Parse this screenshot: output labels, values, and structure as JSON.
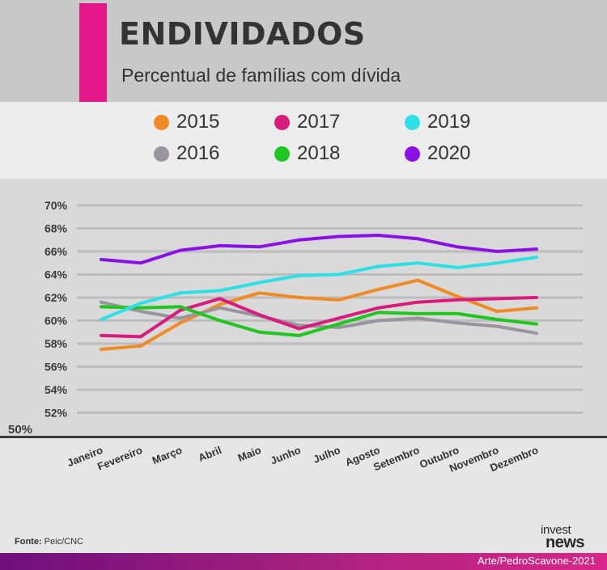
{
  "header": {
    "title": "ENDIVIDADOS",
    "subtitle": "Percentual de famílias com dívida"
  },
  "colors": {
    "accent": "#e5188b",
    "2015": "#f08a24",
    "2016": "#9a949e",
    "2017": "#d81b7c",
    "2018": "#20c520",
    "2019": "#2ee0e6",
    "2020": "#8a10e6"
  },
  "legend": [
    {
      "label": "2015",
      "color": "#f08a24"
    },
    {
      "label": "2017",
      "color": "#d81b7c"
    },
    {
      "label": "2019",
      "color": "#2ee0e6"
    },
    {
      "label": "2016",
      "color": "#9a949e"
    },
    {
      "label": "2018",
      "color": "#20c520"
    },
    {
      "label": "2020",
      "color": "#8a10e6"
    }
  ],
  "chart_data": {
    "type": "line",
    "x": [
      "Janeiro",
      "Fevereiro",
      "Março",
      "Abril",
      "Maio",
      "Junho",
      "Julho",
      "Agosto",
      "Setembro",
      "Outubro",
      "Novembro",
      "Dezembro"
    ],
    "y_ticks": [
      "70%",
      "68%",
      "66%",
      "64%",
      "62%",
      "60%",
      "58%",
      "56%",
      "54%",
      "52%"
    ],
    "y_base_label": "50%",
    "ylim": [
      50,
      70
    ],
    "grid": true,
    "series": [
      {
        "name": "2015",
        "color": "#f08a24",
        "values": [
          57.5,
          57.8,
          59.8,
          61.4,
          62.4,
          62.0,
          61.8,
          62.7,
          63.5,
          62.1,
          60.8,
          61.1
        ]
      },
      {
        "name": "2016",
        "color": "#9a949e",
        "values": [
          61.6,
          60.8,
          60.2,
          61.1,
          60.4,
          59.6,
          59.4,
          60.0,
          60.2,
          59.8,
          59.5,
          58.9
        ]
      },
      {
        "name": "2017",
        "color": "#d81b7c",
        "values": [
          58.7,
          58.6,
          60.9,
          61.9,
          60.5,
          59.3,
          60.2,
          61.1,
          61.6,
          61.8,
          61.9,
          62.0
        ]
      },
      {
        "name": "2018",
        "color": "#20c520",
        "values": [
          61.2,
          61.1,
          61.2,
          60.0,
          59.0,
          58.7,
          59.7,
          60.7,
          60.6,
          60.6,
          60.1,
          59.7
        ]
      },
      {
        "name": "2019",
        "color": "#2ee0e6",
        "values": [
          60.1,
          61.5,
          62.4,
          62.6,
          63.3,
          63.9,
          64.0,
          64.7,
          65.0,
          64.6,
          65.0,
          65.5
        ]
      },
      {
        "name": "2020",
        "color": "#8a10e6",
        "values": [
          65.3,
          65.0,
          66.1,
          66.5,
          66.4,
          67.0,
          67.3,
          67.4,
          67.1,
          66.4,
          66.0,
          66.2
        ]
      }
    ]
  },
  "footer": {
    "source_label": "Fonte:",
    "source_value": "Peic/CNC",
    "credit": "Arte/PedroScavone-2021",
    "brand_top": "invest",
    "brand_bottom": "news"
  }
}
